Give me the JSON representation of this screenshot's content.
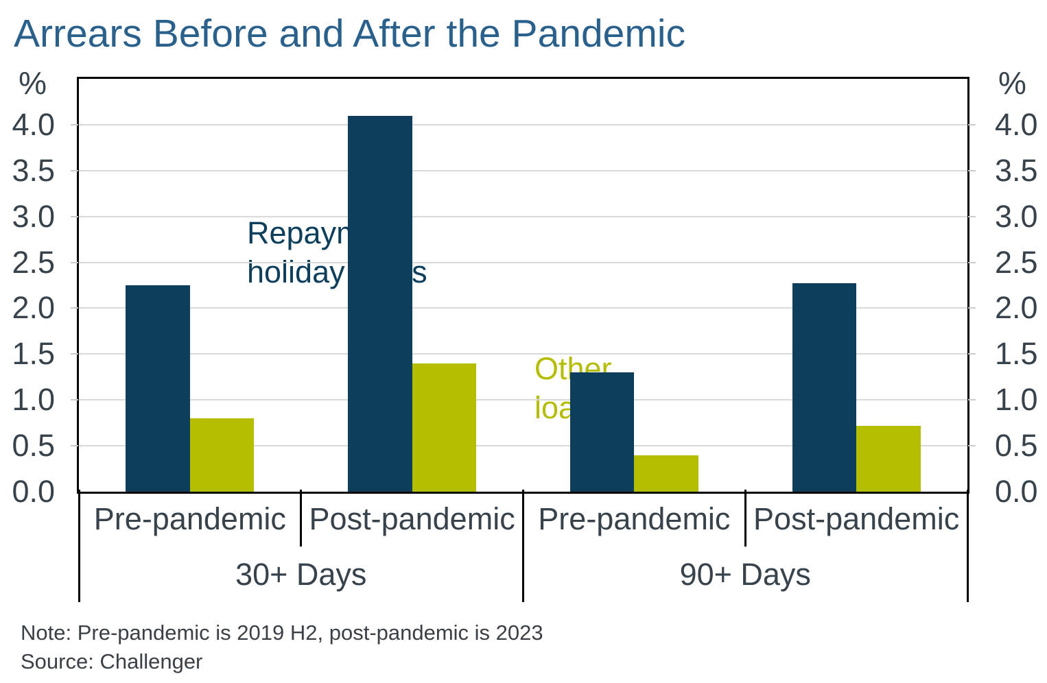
{
  "title": "Arrears Before and After the Pandemic",
  "chart_data": {
    "type": "bar",
    "title": "Arrears Before and After the Pandemic",
    "unit": "%",
    "ylim": [
      0,
      4.5
    ],
    "ytick_step": 0.5,
    "yticks": [
      "0.0",
      "0.5",
      "1.0",
      "1.5",
      "2.0",
      "2.5",
      "3.0",
      "3.5",
      "4.0"
    ],
    "grid": true,
    "legend_position": "text-labels-inside-plot",
    "groups": [
      {
        "label": "30+ Days",
        "categories": [
          "Pre-pandemic",
          "Post-pandemic"
        ]
      },
      {
        "label": "90+ Days",
        "categories": [
          "Pre-pandemic",
          "Post-pandemic"
        ]
      }
    ],
    "series": [
      {
        "name": "Repayment holiday loans",
        "color": "#0d3e5c",
        "values": [
          2.25,
          4.1,
          1.3,
          2.27
        ]
      },
      {
        "name": "Other loans",
        "color": "#b5bd00",
        "values": [
          0.8,
          1.4,
          0.4,
          0.72
        ]
      }
    ],
    "note": "Note: Pre-pandemic is 2019 H2, post-pandemic is 2023",
    "source": "Source: Challenger"
  },
  "colors": {
    "title": "#2a618c",
    "axis_text": "#37424a",
    "note_text": "#3a4045",
    "gridline": "#d9d9d9",
    "border": "#000000",
    "background": "#ffffff",
    "series_navy": "#0d3e5c",
    "series_olive": "#b5bd00"
  }
}
